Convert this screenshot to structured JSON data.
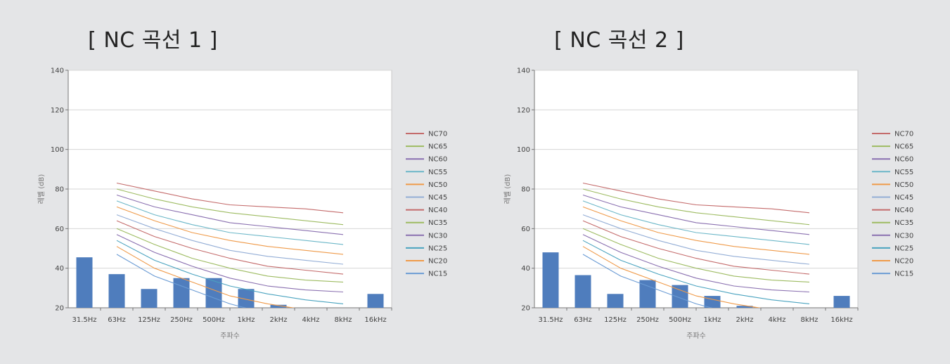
{
  "charts": [
    {
      "title": "[ NC 곡선 1 ]",
      "chart_data": {
        "type": "bar",
        "categories": [
          "31.5Hz",
          "63Hz",
          "125Hz",
          "250Hz",
          "500Hz",
          "1kHz",
          "2kHz",
          "4kHz",
          "8kHz",
          "16kHz"
        ],
        "values": [
          45.5,
          37,
          29.5,
          35,
          35,
          29.5,
          21.5,
          20,
          20,
          27
        ],
        "xlabel": "주파수",
        "ylabel": "레벨 (dB)",
        "ylim": [
          20,
          140
        ],
        "yticks": [
          20,
          40,
          60,
          80,
          100,
          120,
          140
        ],
        "grid": true,
        "legend_position": "right",
        "bar_color": "#4f7dbd",
        "nc_curves": [
          {
            "name": "NC70",
            "color": "#c46b6b",
            "values": [
              83,
              79,
              75,
              72,
              71,
              70,
              68
            ]
          },
          {
            "name": "NC65",
            "color": "#9dbb61",
            "values": [
              80,
              75,
              71,
              68,
              66,
              64,
              62
            ]
          },
          {
            "name": "NC60",
            "color": "#8a70b0",
            "values": [
              77,
              71,
              67,
              63,
              61,
              59,
              57
            ]
          },
          {
            "name": "NC55",
            "color": "#6cb7c8",
            "values": [
              74,
              67,
              62,
              58,
              56,
              54,
              52
            ]
          },
          {
            "name": "NC50",
            "color": "#ef9a49",
            "values": [
              71,
              64,
              58,
              54,
              51,
              49,
              47
            ]
          },
          {
            "name": "NC45",
            "color": "#94aed6",
            "values": [
              67,
              60,
              54,
              49,
              46,
              44,
              42
            ]
          },
          {
            "name": "NC40",
            "color": "#c46b6b",
            "values": [
              64,
              56,
              50,
              45,
              41,
              39,
              37
            ]
          },
          {
            "name": "NC35",
            "color": "#9dbb61",
            "values": [
              60,
              52,
              45,
              40,
              36,
              34,
              33
            ]
          },
          {
            "name": "NC30",
            "color": "#8a70b0",
            "values": [
              57,
              48,
              41,
              35,
              31,
              29,
              28
            ]
          },
          {
            "name": "NC25",
            "color": "#4aa3bf",
            "values": [
              54,
              44,
              37,
              31,
              27,
              24,
              22
            ]
          },
          {
            "name": "NC20",
            "color": "#ef9a49",
            "values": [
              51,
              40,
              33,
              26,
              22,
              19,
              18
            ]
          },
          {
            "name": "NC15",
            "color": "#6a9bd4",
            "values": [
              47,
              36,
              29,
              22,
              17,
              14,
              12
            ]
          }
        ]
      }
    },
    {
      "title": "[ NC 곡선 2 ]",
      "chart_data": {
        "type": "bar",
        "categories": [
          "31.5Hz",
          "63Hz",
          "125Hz",
          "250Hz",
          "500Hz",
          "1kHz",
          "2kHz",
          "4kHz",
          "8kHz",
          "16kHz"
        ],
        "values": [
          48,
          36.5,
          27,
          34,
          31.5,
          26,
          21,
          20,
          20,
          26
        ],
        "xlabel": "주파수",
        "ylabel": "레벨 (dB)",
        "ylim": [
          20,
          140
        ],
        "yticks": [
          20,
          40,
          60,
          80,
          100,
          120,
          140
        ],
        "grid": true,
        "legend_position": "right",
        "bar_color": "#4f7dbd",
        "nc_curves": [
          {
            "name": "NC70",
            "color": "#c46b6b",
            "values": [
              83,
              79,
              75,
              72,
              71,
              70,
              68
            ]
          },
          {
            "name": "NC65",
            "color": "#9dbb61",
            "values": [
              80,
              75,
              71,
              68,
              66,
              64,
              62
            ]
          },
          {
            "name": "NC60",
            "color": "#8a70b0",
            "values": [
              77,
              71,
              67,
              63,
              61,
              59,
              57
            ]
          },
          {
            "name": "NC55",
            "color": "#6cb7c8",
            "values": [
              74,
              67,
              62,
              58,
              56,
              54,
              52
            ]
          },
          {
            "name": "NC50",
            "color": "#ef9a49",
            "values": [
              71,
              64,
              58,
              54,
              51,
              49,
              47
            ]
          },
          {
            "name": "NC45",
            "color": "#94aed6",
            "values": [
              67,
              60,
              54,
              49,
              46,
              44,
              42
            ]
          },
          {
            "name": "NC40",
            "color": "#c46b6b",
            "values": [
              64,
              56,
              50,
              45,
              41,
              39,
              37
            ]
          },
          {
            "name": "NC35",
            "color": "#9dbb61",
            "values": [
              60,
              52,
              45,
              40,
              36,
              34,
              33
            ]
          },
          {
            "name": "NC30",
            "color": "#8a70b0",
            "values": [
              57,
              48,
              41,
              35,
              31,
              29,
              28
            ]
          },
          {
            "name": "NC25",
            "color": "#4aa3bf",
            "values": [
              54,
              44,
              37,
              31,
              27,
              24,
              22
            ]
          },
          {
            "name": "NC20",
            "color": "#ef9a49",
            "values": [
              51,
              40,
              33,
              26,
              22,
              19,
              18
            ]
          },
          {
            "name": "NC15",
            "color": "#6a9bd4",
            "values": [
              47,
              36,
              29,
              22,
              17,
              14,
              12
            ]
          }
        ]
      }
    }
  ]
}
